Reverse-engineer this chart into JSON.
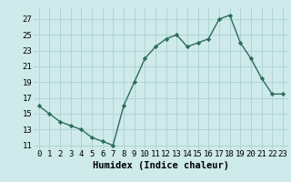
{
  "x": [
    0,
    1,
    2,
    3,
    4,
    5,
    6,
    7,
    8,
    9,
    10,
    11,
    12,
    13,
    14,
    15,
    16,
    17,
    18,
    19,
    20,
    21,
    22,
    23
  ],
  "y": [
    16,
    15,
    14,
    13.5,
    13,
    12,
    11.5,
    11,
    16,
    19,
    22,
    23.5,
    24.5,
    25,
    23.5,
    24,
    24.5,
    27,
    27.5,
    24,
    22,
    19.5,
    17.5,
    17.5
  ],
  "line_color": "#2e6b5e",
  "marker": "D",
  "marker_size": 2.2,
  "bg_color": "#ceeaea",
  "grid_color": "#b0d4d4",
  "xlabel": "Humidex (Indice chaleur)",
  "ylim": [
    10.5,
    28.5
  ],
  "yticks": [
    11,
    13,
    15,
    17,
    19,
    21,
    23,
    25,
    27
  ],
  "xticks": [
    0,
    1,
    2,
    3,
    4,
    5,
    6,
    7,
    8,
    9,
    10,
    11,
    12,
    13,
    14,
    15,
    16,
    17,
    18,
    19,
    20,
    21,
    22,
    23
  ],
  "xlim": [
    -0.5,
    23.5
  ],
  "font_size": 6.5,
  "label_fontsize": 7.5,
  "linewidth": 1.0
}
